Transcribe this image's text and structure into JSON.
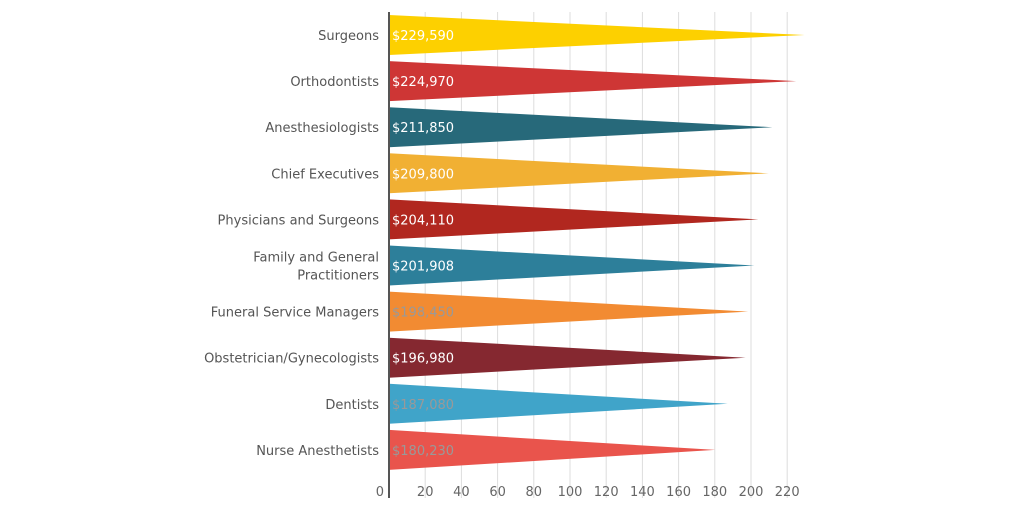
{
  "chart_data": {
    "type": "bar",
    "orientation": "horizontal",
    "bar_shape": "triangle",
    "title": "",
    "xlabel": "",
    "ylabel": "",
    "categories": [
      [
        "Surgeons"
      ],
      [
        "Orthodontists"
      ],
      [
        "Anesthesiologists"
      ],
      [
        "Chief Executives"
      ],
      [
        "Physicians and Surgeons"
      ],
      [
        "Family and General",
        "Practitioners"
      ],
      [
        "Funeral Service Managers"
      ],
      [
        "Obstetrician/Gynecologists"
      ],
      [
        "Dentists"
      ],
      [
        "Nurse Anesthetists"
      ]
    ],
    "values": [
      229590,
      224970,
      211850,
      209800,
      204110,
      201908,
      198450,
      196980,
      187080,
      180230
    ],
    "data_labels": [
      "$229,590",
      "$224,970",
      "$211,850",
      "$209,800",
      "$204,110",
      "$201,908",
      "$198,450",
      "$196,980",
      "$187,080",
      "$180,230"
    ],
    "colors": [
      "#FDD000",
      "#CE3635",
      "#27697A",
      "#F1B033",
      "#B1271F",
      "#2D7F9A",
      "#F28B32",
      "#852830",
      "#40A4C9",
      "#E9544C"
    ],
    "label_colors": [
      "#ffffff",
      "#ffffff",
      "#ffffff",
      "#ffffff",
      "#ffffff",
      "#ffffff",
      "#999999",
      "#ffffff",
      "#999999",
      "#999999"
    ],
    "x_ticks": [
      0,
      20,
      40,
      60,
      80,
      100,
      120,
      140,
      160,
      180,
      200,
      220
    ],
    "tick_unit": 1000,
    "grid": "vertical"
  }
}
